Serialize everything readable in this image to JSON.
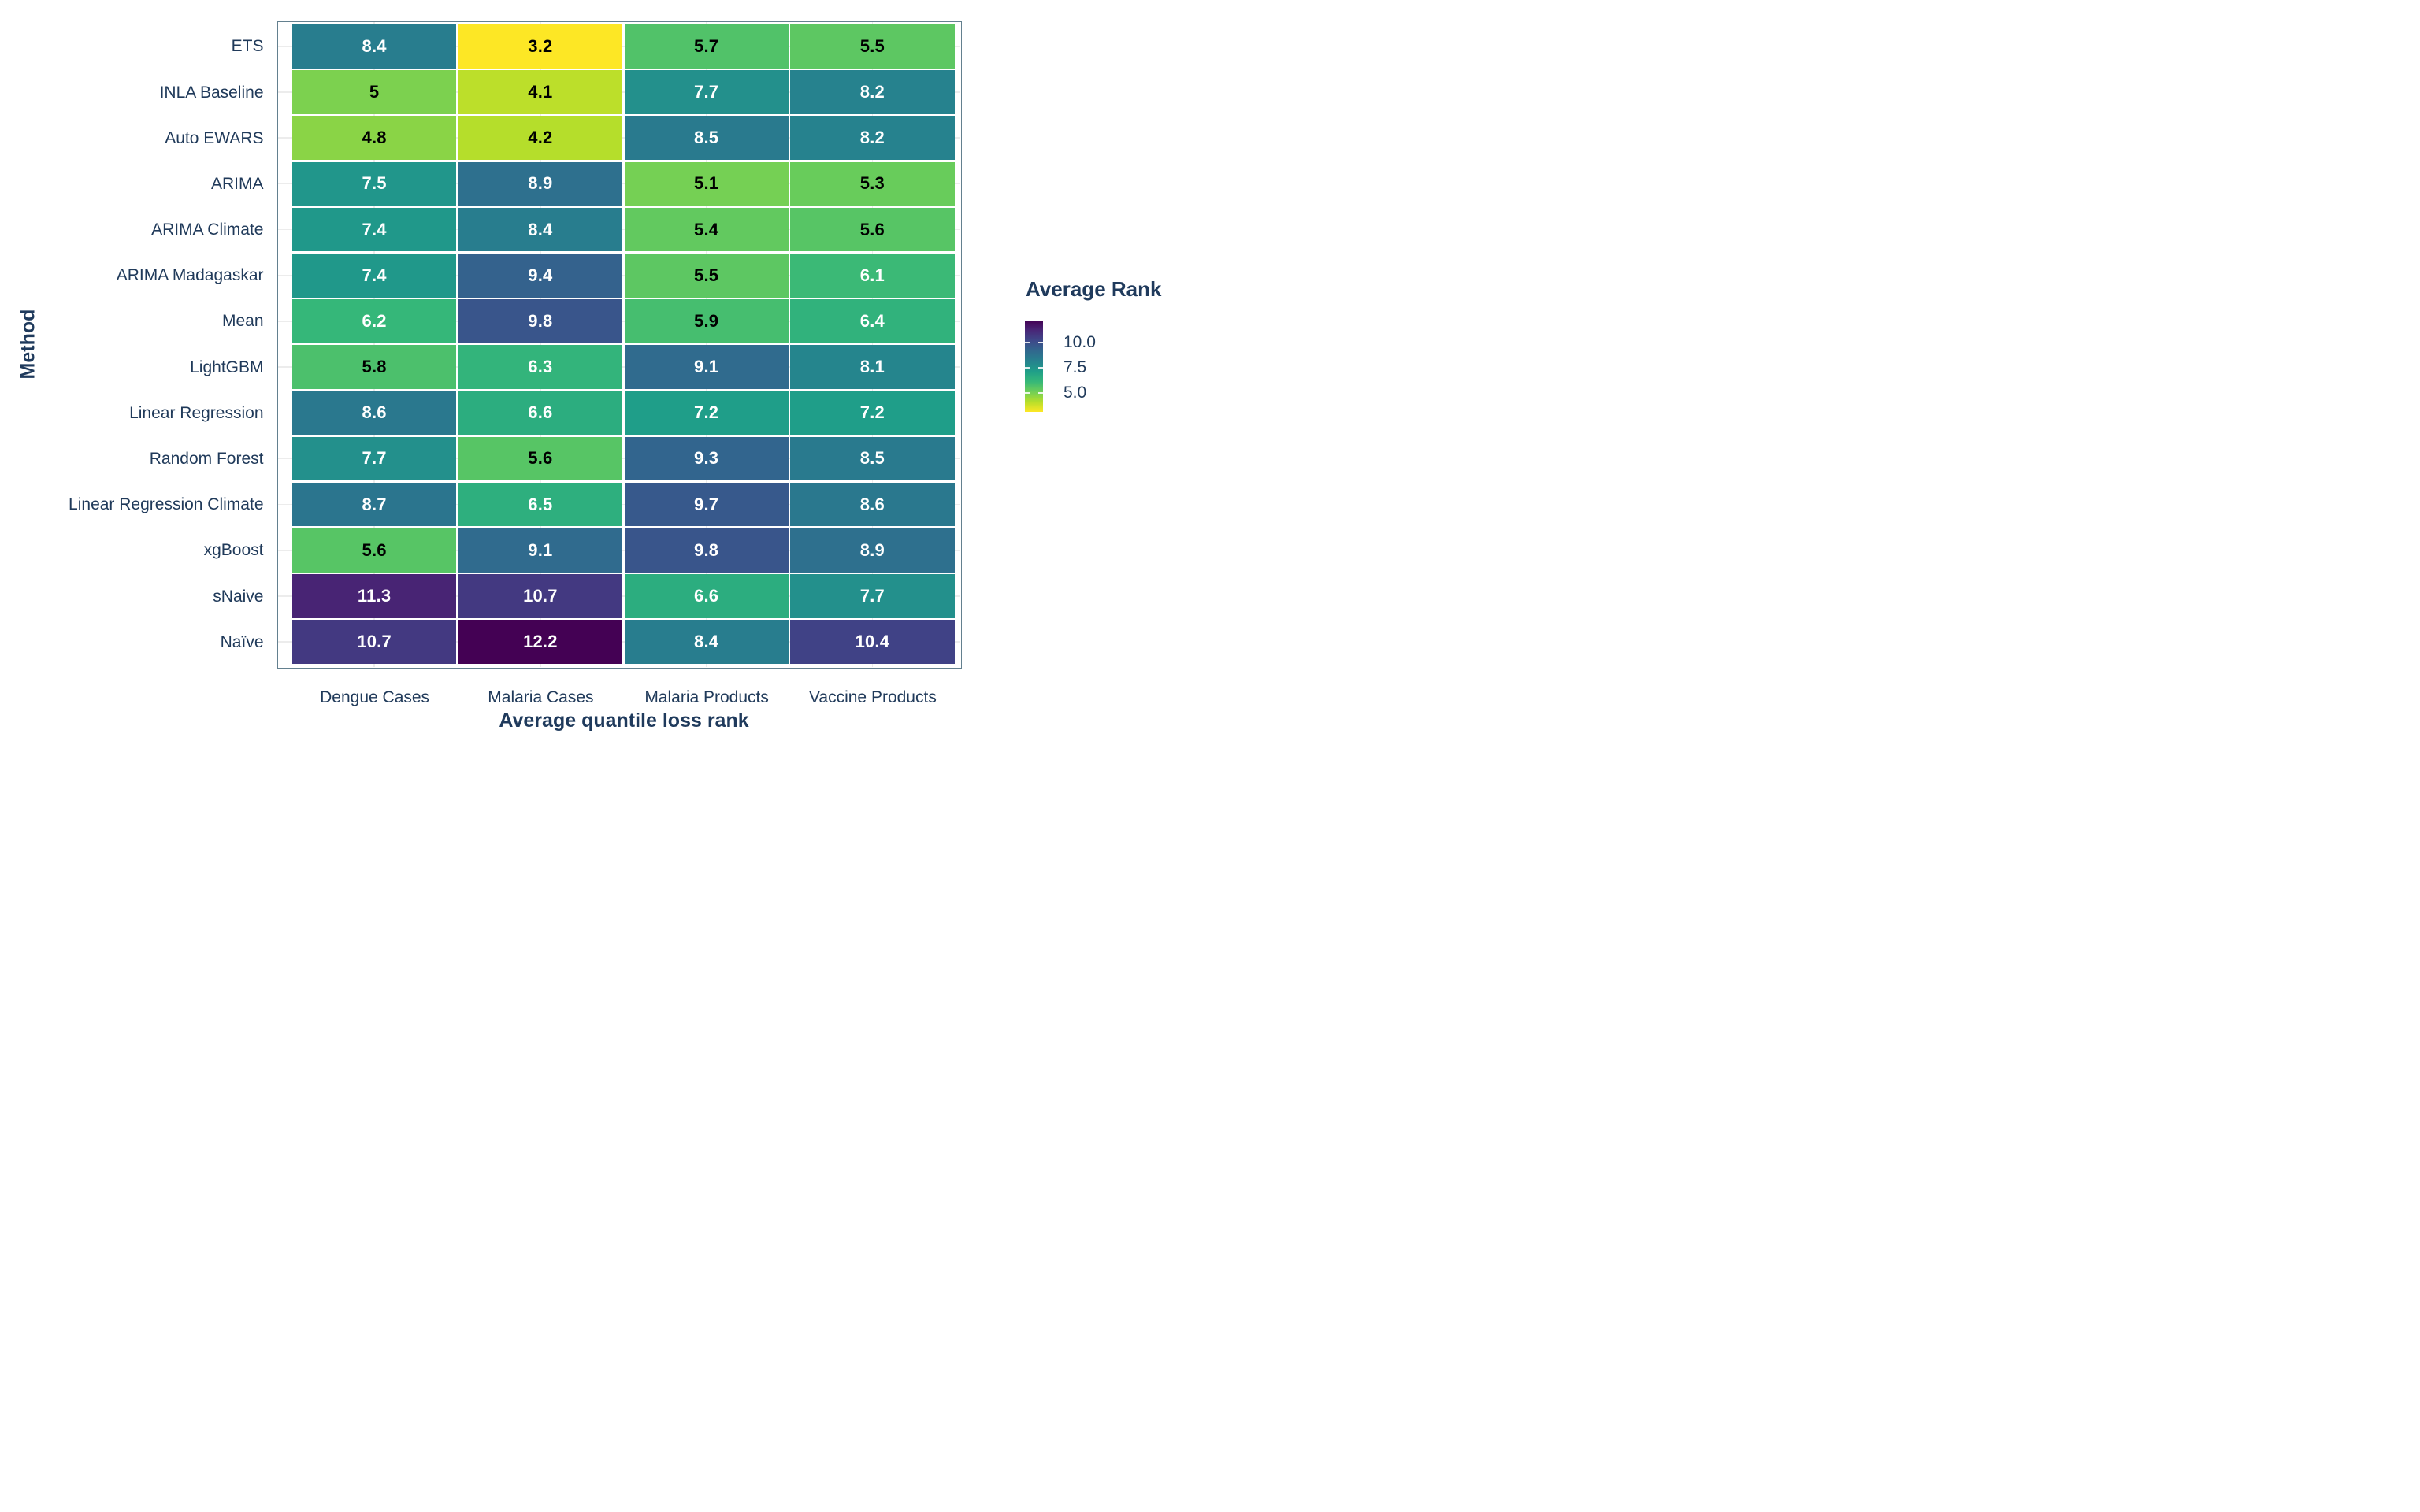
{
  "figure": {
    "colors": {
      "background": "#ffffff",
      "panel_border": "#63808f",
      "gridline": "#ececec",
      "axis_text": "#203a5a",
      "cell_gap": "#ffffff",
      "value_text_dark": "#000000",
      "value_text_light": "#ffffff"
    }
  },
  "chart_data": {
    "type": "heatmap",
    "title": "",
    "xlabel": "Average quantile loss rank",
    "ylabel": "Method",
    "x_categories": [
      "Dengue Cases",
      "Malaria Cases",
      "Malaria Products",
      "Vaccine Products"
    ],
    "y_categories": [
      "ETS",
      "INLA Baseline",
      "Auto EWARS",
      "ARIMA",
      "ARIMA Climate",
      "ARIMA Madagaskar",
      "Mean",
      "LightGBM",
      "Linear Regression",
      "Random Forest",
      "Linear Regression Climate",
      "xgBoost",
      "sNaive",
      "Naïve"
    ],
    "values": [
      [
        8.4,
        3.2,
        5.7,
        5.5
      ],
      [
        5.0,
        4.1,
        7.7,
        8.2
      ],
      [
        4.8,
        4.2,
        8.5,
        8.2
      ],
      [
        7.5,
        8.9,
        5.1,
        5.3
      ],
      [
        7.4,
        8.4,
        5.4,
        5.6
      ],
      [
        7.4,
        9.4,
        5.5,
        6.1
      ],
      [
        6.2,
        9.8,
        5.9,
        6.4
      ],
      [
        5.8,
        6.3,
        9.1,
        8.1
      ],
      [
        8.6,
        6.6,
        7.2,
        7.2
      ],
      [
        7.7,
        5.6,
        9.3,
        8.5
      ],
      [
        8.7,
        6.5,
        9.7,
        8.6
      ],
      [
        5.6,
        9.1,
        9.8,
        8.9
      ],
      [
        11.3,
        10.7,
        6.6,
        7.7
      ],
      [
        10.7,
        12.2,
        8.4,
        10.4
      ]
    ],
    "value_labels": [
      [
        "8.4",
        "3.2",
        "5.7",
        "5.5"
      ],
      [
        "5",
        "4.1",
        "7.7",
        "8.2"
      ],
      [
        "4.8",
        "4.2",
        "8.5",
        "8.2"
      ],
      [
        "7.5",
        "8.9",
        "5.1",
        "5.3"
      ],
      [
        "7.4",
        "8.4",
        "5.4",
        "5.6"
      ],
      [
        "7.4",
        "9.4",
        "5.5",
        "6.1"
      ],
      [
        "6.2",
        "9.8",
        "5.9",
        "6.4"
      ],
      [
        "5.8",
        "6.3",
        "9.1",
        "8.1"
      ],
      [
        "8.6",
        "6.6",
        "7.2",
        "7.2"
      ],
      [
        "7.7",
        "5.6",
        "9.3",
        "8.5"
      ],
      [
        "8.7",
        "6.5",
        "9.7",
        "8.6"
      ],
      [
        "5.6",
        "9.1",
        "9.8",
        "8.9"
      ],
      [
        "11.3",
        "10.7",
        "6.6",
        "7.7"
      ],
      [
        "10.7",
        "12.2",
        "8.4",
        "10.4"
      ]
    ],
    "color_domain": [
      3.2,
      12.2
    ],
    "high_is_dark": true,
    "value_text_dark_below": 6,
    "viridis_stops": [
      [
        0.0,
        "#440154"
      ],
      [
        0.111,
        "#482878"
      ],
      [
        0.222,
        "#3e4989"
      ],
      [
        0.333,
        "#31688e"
      ],
      [
        0.444,
        "#26828e"
      ],
      [
        0.556,
        "#1f9e89"
      ],
      [
        0.667,
        "#35b779"
      ],
      [
        0.778,
        "#6ece58"
      ],
      [
        0.889,
        "#b5de2b"
      ],
      [
        1.0,
        "#fde725"
      ]
    ],
    "grid": true,
    "legend": {
      "position": "right",
      "title": "Average Rank",
      "tick_values": [
        10.0,
        7.5,
        5.0
      ],
      "tick_labels": [
        "10.0",
        "7.5",
        "5.0"
      ]
    }
  }
}
